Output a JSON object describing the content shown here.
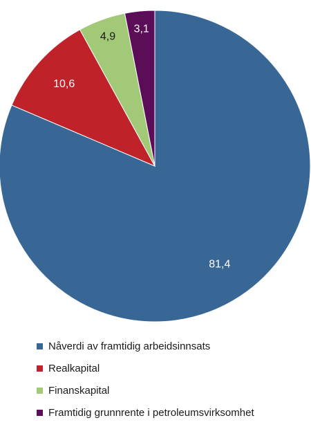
{
  "chart_data": {
    "type": "pie",
    "title": "",
    "start_angle_deg": 0,
    "direction": "clockwise",
    "legend_position": "bottom",
    "series": [
      {
        "name": "Nåverdi av framtidig arbeidsinnsats",
        "value": 81.4,
        "label": "81,4",
        "color": "#386795",
        "label_color": "#ffffff"
      },
      {
        "name": "Realkapital",
        "value": 10.6,
        "label": "10,6",
        "color": "#c0222a",
        "label_color": "#ffffff"
      },
      {
        "name": "Finanskapital",
        "value": 4.9,
        "label": "4,9",
        "color": "#a2c977",
        "label_color": "#1a1a1a"
      },
      {
        "name": "Framtidig grunnrente i petroleumsvirksomhet",
        "value": 3.1,
        "label": "3,1",
        "color": "#5b0d58",
        "label_color": "#ffffff"
      }
    ]
  }
}
